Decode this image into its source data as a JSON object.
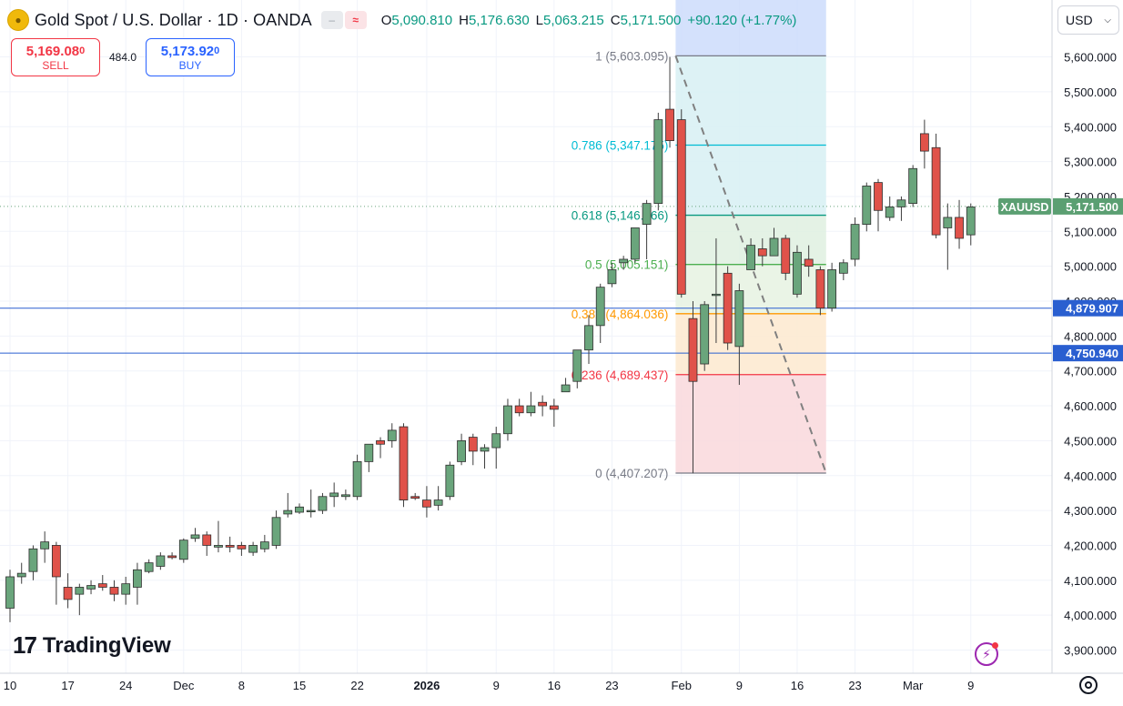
{
  "header": {
    "symbol_icon": "gold-coins-icon",
    "title": "Gold Spot / U.S. Dollar · 1D · OANDA",
    "badge1": "–",
    "badge2": "≈",
    "ohlc": [
      {
        "k": "O",
        "v": "5,090.810"
      },
      {
        "k": "H",
        "v": "5,176.630"
      },
      {
        "k": "L",
        "v": "5,063.215"
      },
      {
        "k": "C",
        "v": "5,171.500"
      }
    ],
    "change": "+90.120 (+1.77%)"
  },
  "trade": {
    "sell_price": "5,169.08",
    "sell_sup": "0",
    "sell_label": "SELL",
    "spread": "484.0",
    "buy_price": "5,173.92",
    "buy_sup": "0",
    "buy_label": "BUY"
  },
  "currency": {
    "value": "USD",
    "icon": "chevron-down-icon"
  },
  "logo": {
    "mark": "17",
    "text": "TradingView"
  },
  "colors": {
    "up": "#6aa57c",
    "down": "#e0524a",
    "up_wick": "#3d3d3d",
    "down_wick": "#3d3d3d",
    "grid": "#f0f3fa",
    "axis_text": "#131722",
    "hline": "#2a5fd0",
    "badge_bg": "#2a5fd0",
    "last_bg": "#5b9f72"
  },
  "chart_data": {
    "type": "candlestick",
    "title": "Gold Spot / U.S. Dollar · 1D · OANDA",
    "series_name": "XAUUSD",
    "ylim": [
      3850,
      5720
    ],
    "y_ticks": [
      3900,
      4000,
      4100,
      4200,
      4300,
      4400,
      4500,
      4600,
      4700,
      4800,
      4900,
      5000,
      5100,
      5200,
      5300,
      5400,
      5500,
      5600
    ],
    "y_tick_labels": [
      "3,900.000",
      "4,000.000",
      "4,100.000",
      "4,200.000",
      "4,300.000",
      "4,400.000",
      "4,500.000",
      "4,600.000",
      "4,700.000",
      "4,800.000",
      "4,900.000",
      "5,000.000",
      "5,100.000",
      "5,200.000",
      "5,300.000",
      "5,400.000",
      "5,500.000",
      "5,600.000"
    ],
    "x_labels": [
      {
        "label": "10",
        "bar": 0
      },
      {
        "label": "17",
        "bar": 5
      },
      {
        "label": "24",
        "bar": 10
      },
      {
        "label": "Dec",
        "bar": 15
      },
      {
        "label": "8",
        "bar": 20
      },
      {
        "label": "15",
        "bar": 25
      },
      {
        "label": "22",
        "bar": 30
      },
      {
        "label": "2026",
        "bar": 36,
        "bold": true
      },
      {
        "label": "9",
        "bar": 42
      },
      {
        "label": "16",
        "bar": 47
      },
      {
        "label": "23",
        "bar": 52
      },
      {
        "label": "Feb",
        "bar": 58
      },
      {
        "label": "9",
        "bar": 63
      },
      {
        "label": "16",
        "bar": 68
      },
      {
        "label": "23",
        "bar": 73
      },
      {
        "label": "Mar",
        "bar": 78
      },
      {
        "label": "9",
        "bar": 83
      }
    ],
    "candles": [
      {
        "o": 4020,
        "h": 4130,
        "l": 3980,
        "c": 4110
      },
      {
        "o": 4110,
        "h": 4150,
        "l": 4090,
        "c": 4120
      },
      {
        "o": 4125,
        "h": 4200,
        "l": 4100,
        "c": 4190
      },
      {
        "o": 4190,
        "h": 4240,
        "l": 4150,
        "c": 4210
      },
      {
        "o": 4200,
        "h": 4210,
        "l": 4030,
        "c": 4110
      },
      {
        "o": 4080,
        "h": 4120,
        "l": 4020,
        "c": 4045
      },
      {
        "o": 4060,
        "h": 4090,
        "l": 4000,
        "c": 4080
      },
      {
        "o": 4075,
        "h": 4100,
        "l": 4060,
        "c": 4085
      },
      {
        "o": 4090,
        "h": 4115,
        "l": 4070,
        "c": 4080
      },
      {
        "o": 4080,
        "h": 4100,
        "l": 4040,
        "c": 4060
      },
      {
        "o": 4060,
        "h": 4110,
        "l": 4030,
        "c": 4090
      },
      {
        "o": 4080,
        "h": 4150,
        "l": 4030,
        "c": 4130
      },
      {
        "o": 4125,
        "h": 4160,
        "l": 4120,
        "c": 4150
      },
      {
        "o": 4140,
        "h": 4180,
        "l": 4130,
        "c": 4170
      },
      {
        "o": 4170,
        "h": 4180,
        "l": 4160,
        "c": 4165
      },
      {
        "o": 4160,
        "h": 4220,
        "l": 4150,
        "c": 4215
      },
      {
        "o": 4220,
        "h": 4250,
        "l": 4210,
        "c": 4230
      },
      {
        "o": 4230,
        "h": 4240,
        "l": 4170,
        "c": 4200
      },
      {
        "o": 4195,
        "h": 4270,
        "l": 4180,
        "c": 4200
      },
      {
        "o": 4200,
        "h": 4225,
        "l": 4180,
        "c": 4195
      },
      {
        "o": 4200,
        "h": 4210,
        "l": 4170,
        "c": 4190
      },
      {
        "o": 4180,
        "h": 4210,
        "l": 4170,
        "c": 4200
      },
      {
        "o": 4190,
        "h": 4230,
        "l": 4180,
        "c": 4210
      },
      {
        "o": 4200,
        "h": 4300,
        "l": 4190,
        "c": 4280
      },
      {
        "o": 4290,
        "h": 4350,
        "l": 4280,
        "c": 4300
      },
      {
        "o": 4295,
        "h": 4320,
        "l": 4290,
        "c": 4310
      },
      {
        "o": 4300,
        "h": 4360,
        "l": 4280,
        "c": 4300
      },
      {
        "o": 4300,
        "h": 4350,
        "l": 4290,
        "c": 4340
      },
      {
        "o": 4340,
        "h": 4380,
        "l": 4310,
        "c": 4350
      },
      {
        "o": 4340,
        "h": 4360,
        "l": 4330,
        "c": 4345
      },
      {
        "o": 4340,
        "h": 4460,
        "l": 4330,
        "c": 4440
      },
      {
        "o": 4440,
        "h": 4490,
        "l": 4410,
        "c": 4490
      },
      {
        "o": 4500,
        "h": 4510,
        "l": 4450,
        "c": 4490
      },
      {
        "o": 4500,
        "h": 4550,
        "l": 4480,
        "c": 4530
      },
      {
        "o": 4540,
        "h": 4550,
        "l": 4310,
        "c": 4330
      },
      {
        "o": 4340,
        "h": 4350,
        "l": 4330,
        "c": 4335
      },
      {
        "o": 4330,
        "h": 4370,
        "l": 4280,
        "c": 4310
      },
      {
        "o": 4315,
        "h": 4370,
        "l": 4300,
        "c": 4330
      },
      {
        "o": 4340,
        "h": 4440,
        "l": 4330,
        "c": 4430
      },
      {
        "o": 4440,
        "h": 4520,
        "l": 4430,
        "c": 4500
      },
      {
        "o": 4510,
        "h": 4520,
        "l": 4430,
        "c": 4470
      },
      {
        "o": 4470,
        "h": 4490,
        "l": 4420,
        "c": 4480
      },
      {
        "o": 4480,
        "h": 4540,
        "l": 4420,
        "c": 4520
      },
      {
        "o": 4520,
        "h": 4620,
        "l": 4500,
        "c": 4600
      },
      {
        "o": 4600,
        "h": 4620,
        "l": 4570,
        "c": 4580
      },
      {
        "o": 4580,
        "h": 4640,
        "l": 4570,
        "c": 4600
      },
      {
        "o": 4610,
        "h": 4630,
        "l": 4570,
        "c": 4600
      },
      {
        "o": 4600,
        "h": 4620,
        "l": 4540,
        "c": 4590
      },
      {
        "o": 4640,
        "h": 4680,
        "l": 4640,
        "c": 4660
      },
      {
        "o": 4670,
        "h": 4760,
        "l": 4650,
        "c": 4760
      },
      {
        "o": 4760,
        "h": 4860,
        "l": 4720,
        "c": 4830
      },
      {
        "o": 4830,
        "h": 4950,
        "l": 4780,
        "c": 4940
      },
      {
        "o": 4950,
        "h": 5010,
        "l": 4940,
        "c": 4990
      },
      {
        "o": 5010,
        "h": 5030,
        "l": 4990,
        "c": 5020
      },
      {
        "o": 5020,
        "h": 5110,
        "l": 5010,
        "c": 5110
      },
      {
        "o": 5120,
        "h": 5190,
        "l": 5020,
        "c": 5180
      },
      {
        "o": 5180,
        "h": 5440,
        "l": 5160,
        "c": 5420
      },
      {
        "o": 5450,
        "h": 5600,
        "l": 5340,
        "c": 5360
      },
      {
        "o": 5420,
        "h": 5450,
        "l": 4910,
        "c": 4920
      },
      {
        "o": 4850,
        "h": 4900,
        "l": 4407,
        "c": 4670
      },
      {
        "o": 4720,
        "h": 4900,
        "l": 4700,
        "c": 4890
      },
      {
        "o": 4920,
        "h": 5080,
        "l": 4780,
        "c": 4920
      },
      {
        "o": 4980,
        "h": 5000,
        "l": 4760,
        "c": 4780
      },
      {
        "o": 4770,
        "h": 4950,
        "l": 4660,
        "c": 4930
      },
      {
        "o": 4990,
        "h": 5080,
        "l": 4990,
        "c": 5060
      },
      {
        "o": 5050,
        "h": 5080,
        "l": 5000,
        "c": 5030
      },
      {
        "o": 5030,
        "h": 5110,
        "l": 5030,
        "c": 5080
      },
      {
        "o": 5080,
        "h": 5090,
        "l": 4960,
        "c": 4980
      },
      {
        "o": 4920,
        "h": 5060,
        "l": 4910,
        "c": 5040
      },
      {
        "o": 5020,
        "h": 5060,
        "l": 4970,
        "c": 5000
      },
      {
        "o": 4990,
        "h": 5000,
        "l": 4860,
        "c": 4880
      },
      {
        "o": 4880,
        "h": 5010,
        "l": 4870,
        "c": 4990
      },
      {
        "o": 4980,
        "h": 5020,
        "l": 4960,
        "c": 5010
      },
      {
        "o": 5020,
        "h": 5140,
        "l": 5000,
        "c": 5120
      },
      {
        "o": 5120,
        "h": 5240,
        "l": 5100,
        "c": 5230
      },
      {
        "o": 5240,
        "h": 5250,
        "l": 5100,
        "c": 5160
      },
      {
        "o": 5140,
        "h": 5200,
        "l": 5130,
        "c": 5170
      },
      {
        "o": 5170,
        "h": 5200,
        "l": 5130,
        "c": 5190
      },
      {
        "o": 5180,
        "h": 5290,
        "l": 5170,
        "c": 5280
      },
      {
        "o": 5380,
        "h": 5420,
        "l": 5280,
        "c": 5330
      },
      {
        "o": 5340,
        "h": 5380,
        "l": 5080,
        "c": 5090
      },
      {
        "o": 5110,
        "h": 5180,
        "l": 4990,
        "c": 5140
      },
      {
        "o": 5140,
        "h": 5190,
        "l": 5050,
        "c": 5080
      },
      {
        "o": 5090,
        "h": 5180,
        "l": 5060,
        "c": 5170
      }
    ],
    "fib": {
      "start_bar": 57.5,
      "end_bar": 70.5,
      "high": 5603.095,
      "low": 4407.207,
      "levels": [
        {
          "ratio": "1",
          "value": 5603.095,
          "label": "1 (5,603.095)",
          "color": "#787b86",
          "fill": "#dcdde0"
        },
        {
          "ratio": "0.786",
          "value": 5347.175,
          "label": "0.786 (5,347.175)",
          "color": "#00bcd4",
          "fill": "#d7f0f3"
        },
        {
          "ratio": "0.618",
          "value": 5146.266,
          "label": "0.618 (5,146.266)",
          "color": "#089981",
          "fill": "#d7f0f3"
        },
        {
          "ratio": "0.5",
          "value": 5005.151,
          "label": "0.5 (5,005.151)",
          "color": "#4caf50",
          "fill": "#dff0e0"
        },
        {
          "ratio": "0.382",
          "value": 4864.036,
          "label": "0.382 (4,864.036)",
          "color": "#ff9800",
          "fill": "#e6f2e2"
        },
        {
          "ratio": "0.236",
          "value": 4689.437,
          "label": "0.236 (4,689.437)",
          "color": "#f23645",
          "fill": "#fde9cf"
        },
        {
          "ratio": "0",
          "value": 4407.207,
          "label": "0 (4,407.207)",
          "color": "#787b86",
          "fill": "#f9d8dc"
        }
      ]
    },
    "hlines": [
      {
        "value": 4879.907,
        "label": "4,879.907"
      },
      {
        "value": 4750.94,
        "label": "4,750.940"
      }
    ],
    "last_price": {
      "value": 5171.5,
      "label": "5,171.500",
      "symbol": "XAUUSD"
    }
  }
}
